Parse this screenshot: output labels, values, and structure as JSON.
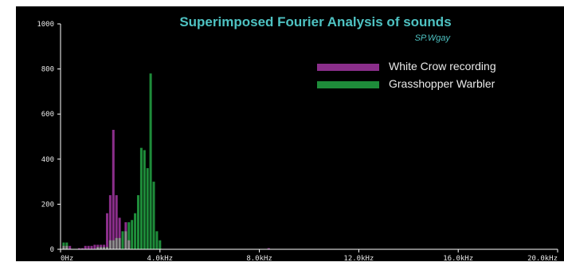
{
  "chart_data": {
    "type": "bar",
    "title": "Superimposed Fourier Analysis of sounds",
    "subtitle": "SP.Wgay",
    "xlabel": "",
    "ylabel": "",
    "x_bin_centers": [
      1,
      2,
      3,
      4,
      5,
      6,
      7,
      8,
      9,
      10,
      11,
      12,
      13,
      14,
      15,
      16,
      17,
      18,
      19,
      20,
      21,
      22,
      23,
      24,
      25,
      26,
      27,
      28,
      29,
      30,
      31,
      32,
      33,
      34,
      35,
      36,
      37,
      38,
      39,
      40,
      41,
      42,
      43,
      44,
      45,
      46,
      47,
      48,
      49,
      50,
      51,
      52,
      53,
      54,
      55,
      56,
      57,
      58,
      59,
      60,
      61,
      62,
      63,
      64,
      65,
      66,
      67,
      68,
      69,
      70,
      71,
      72,
      73,
      74,
      75,
      76,
      77,
      78,
      79,
      80,
      81,
      82,
      83,
      84,
      85,
      86,
      87,
      88,
      89,
      90,
      91,
      92,
      93,
      94,
      95,
      96,
      97,
      98,
      99,
      100,
      101,
      102,
      103,
      104,
      105,
      106,
      107,
      108,
      109,
      110,
      111,
      112,
      113,
      114,
      115,
      116,
      117,
      118,
      119,
      120,
      121,
      122,
      123,
      124,
      125,
      126,
      127,
      128,
      129,
      130,
      131,
      132,
      133,
      134,
      135,
      136,
      137,
      138,
      139,
      140,
      141,
      142,
      143,
      144,
      145,
      146,
      147,
      148,
      149,
      150,
      151,
      152,
      153,
      154,
      155,
      156,
      157,
      158,
      159,
      160
    ],
    "xlim": [
      0,
      160
    ],
    "ylim": [
      0,
      1000
    ],
    "x_tick_labels": [
      "0Hz",
      "4.0kHz",
      "8.0kHz",
      "12.0kHz",
      "16.0kHz",
      "20.0kHz"
    ],
    "y_tick_labels": [
      "1000",
      "800",
      "600",
      "400",
      "200",
      "0"
    ],
    "series": [
      {
        "name": "White Crow recording",
        "color": "#8a2e8a",
        "values": [
          15,
          15,
          15,
          0,
          0,
          5,
          5,
          15,
          15,
          15,
          20,
          20,
          20,
          20,
          160,
          240,
          530,
          240,
          140,
          0,
          120,
          40,
          0,
          0,
          0,
          0,
          0,
          0,
          0,
          0,
          0,
          0,
          0,
          0,
          0,
          0,
          0,
          0,
          0,
          0,
          0,
          0,
          0,
          0,
          0,
          0,
          0,
          0,
          0,
          0,
          0,
          0,
          0,
          0,
          0,
          0,
          0,
          0,
          0,
          0,
          0,
          0,
          0,
          0,
          0,
          0,
          5,
          0,
          0,
          0,
          0,
          0,
          0,
          0,
          0,
          0,
          0,
          0,
          0,
          0,
          0,
          0,
          0,
          0,
          0,
          0,
          0,
          0,
          0,
          0,
          0,
          0,
          0,
          0,
          0,
          0,
          0,
          0,
          0,
          0,
          0,
          0,
          0,
          0,
          0,
          0,
          0,
          0,
          0,
          0,
          0,
          0,
          0,
          0,
          0,
          0,
          0,
          0,
          0,
          0,
          0,
          0,
          0,
          0,
          0,
          0,
          0,
          0,
          0,
          0,
          0,
          0,
          0,
          0,
          0,
          0,
          0,
          0,
          0,
          0,
          0,
          0,
          0,
          0,
          0,
          0,
          0,
          0,
          0,
          0,
          0,
          0,
          0,
          0,
          0,
          0,
          0,
          0,
          0,
          0,
          0
        ]
      },
      {
        "name": "Grasshopper Warbler",
        "color": "#1e8c3a",
        "values": [
          30,
          30,
          0,
          0,
          0,
          0,
          0,
          0,
          0,
          0,
          0,
          10,
          10,
          10,
          10,
          40,
          40,
          50,
          50,
          80,
          80,
          120,
          130,
          160,
          240,
          450,
          440,
          360,
          780,
          300,
          80,
          40,
          0,
          0,
          0,
          0,
          0,
          0,
          0,
          0,
          0,
          0,
          0,
          0,
          0,
          0,
          0,
          0,
          0,
          0,
          0,
          0,
          0,
          0,
          0,
          0,
          0,
          0,
          0,
          0,
          0,
          0,
          0,
          0,
          0,
          0,
          0,
          0,
          0,
          0,
          0,
          0,
          0,
          0,
          0,
          0,
          0,
          0,
          0,
          0,
          0,
          0,
          0,
          0,
          0,
          0,
          0,
          0,
          0,
          0,
          0,
          0,
          0,
          0,
          0,
          0,
          0,
          0,
          0,
          0,
          0,
          0,
          0,
          0,
          0,
          0,
          0,
          0,
          0,
          0,
          0,
          0,
          0,
          0,
          0,
          0,
          0,
          0,
          0,
          0,
          0,
          0,
          0,
          0,
          0,
          0,
          0,
          0,
          0,
          0,
          0,
          0,
          0,
          0,
          0,
          0,
          0,
          0,
          0,
          0,
          0,
          0,
          0,
          0,
          0,
          0,
          0,
          0,
          0,
          0,
          0,
          0,
          0,
          0,
          0,
          0,
          0,
          0,
          0,
          0,
          0
        ]
      }
    ],
    "overlap_color": "#8c8c8c",
    "background_color": "#000000",
    "title_color": "#4ec2c2",
    "axis_color": "#ffffff",
    "grid": false,
    "legend_position": "top-right"
  }
}
